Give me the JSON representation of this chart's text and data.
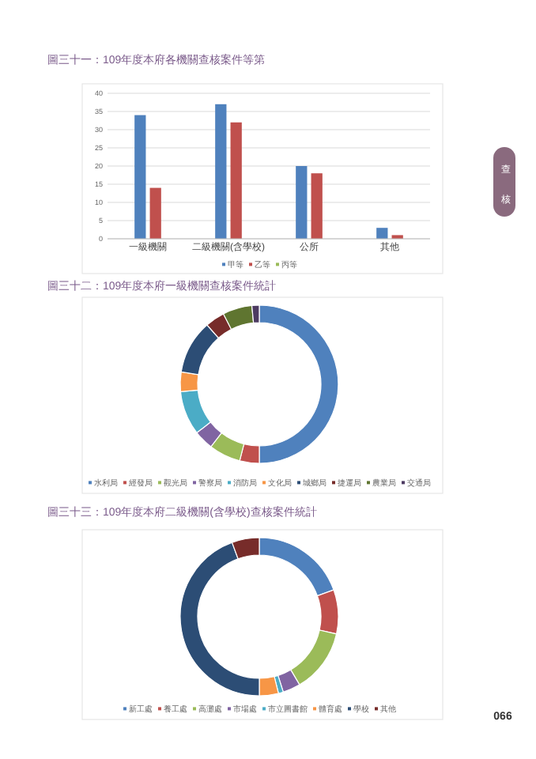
{
  "chart_data": [
    {
      "type": "bar",
      "title": "圖三十一：109年度本府各機關查核案件等第",
      "categories": [
        "一級機關",
        "二級機關(含學校)",
        "公所",
        "其他"
      ],
      "series": [
        {
          "name": "甲等",
          "color": "#4f81bd",
          "values": [
            34,
            37,
            20,
            3
          ]
        },
        {
          "name": "乙等",
          "color": "#c0504d",
          "values": [
            14,
            32,
            18,
            1
          ]
        },
        {
          "name": "丙等",
          "color": "#9bbb59",
          "values": [
            0,
            0,
            0,
            0
          ]
        }
      ],
      "ylim": [
        0,
        40
      ],
      "yticks": [
        0,
        5,
        10,
        15,
        20,
        25,
        30,
        35,
        40
      ],
      "grid": "y",
      "legend": "bottom",
      "annotations": [
        "查核"
      ]
    },
    {
      "type": "donut",
      "title": "圖三十二：109年度本府一級機關查核案件統計",
      "categories": [
        "水利局",
        "經發局",
        "觀光局",
        "警察局",
        "消防局",
        "文化局",
        "城鄉局",
        "捷運局",
        "農業局",
        "交通局"
      ],
      "values": [
        50,
        4,
        6.5,
        4,
        9,
        4,
        11,
        4,
        6,
        1.5
      ],
      "colors": [
        "#4f81bd",
        "#c0504d",
        "#9bbb59",
        "#8064a2",
        "#4bacc6",
        "#f79646",
        "#2c4d75",
        "#772c2a",
        "#5f7530",
        "#4d3b62"
      ],
      "legend": "bottom"
    },
    {
      "type": "donut",
      "title": "圖三十三：109年度本府二級機關(含學校)查核案件統計",
      "categories": [
        "新工處",
        "養工處",
        "高灘處",
        "市場處",
        "市立圖書館",
        "體育處",
        "學校",
        "其他"
      ],
      "values": [
        19.5,
        9,
        13,
        3.6,
        1,
        3.9,
        44.4,
        5.6
      ],
      "colors": [
        "#4f81bd",
        "#c0504d",
        "#9bbb59",
        "#8064a2",
        "#4bacc6",
        "#f79646",
        "#2c4d75",
        "#772c2a"
      ],
      "legend": "bottom",
      "annotations": [
        "066"
      ]
    }
  ]
}
